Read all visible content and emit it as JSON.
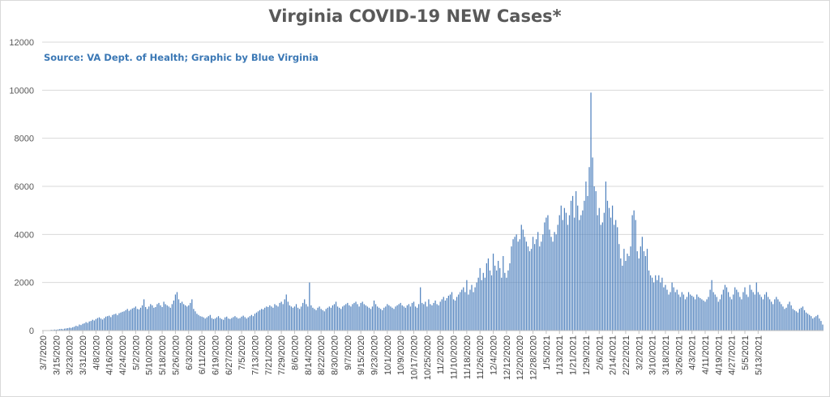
{
  "title": "Virginia COVID-19 NEW Cases*",
  "source": "Source: VA Dept. of Health; Graphic by Blue Virginia",
  "colors": {
    "bar": "#4f81bd",
    "grid": "#d9d9d9",
    "text": "#595959",
    "source": "#3b78b5"
  },
  "chart_data": {
    "type": "bar",
    "title": "Virginia COVID-19 NEW Cases*",
    "subtitle": "Source: VA Dept. of Health; Graphic by Blue Virginia",
    "xlabel": "",
    "ylabel": "",
    "x_start": "3/7/2020",
    "x_end": "5/17/2021",
    "ylim": [
      0,
      12000
    ],
    "yticks": [
      0,
      2000,
      4000,
      6000,
      8000,
      10000,
      12000
    ],
    "xtick_labels": [
      "3/7/2020",
      "3/15/2020",
      "3/23/2020",
      "3/31/2020",
      "4/8/2020",
      "4/16/2020",
      "4/24/2020",
      "5/2/2020",
      "5/10/2020",
      "5/18/2020",
      "5/26/2020",
      "6/3/2020",
      "6/11/2020",
      "6/19/2020",
      "6/27/2020",
      "7/5/2020",
      "7/13/2020",
      "7/21/2020",
      "7/29/2020",
      "8/6/2020",
      "8/14/2020",
      "8/22/2020",
      "8/30/2020",
      "9/7/2020",
      "9/15/2020",
      "9/23/2020",
      "10/1/2020",
      "10/9/2020",
      "10/17/2020",
      "10/25/2020",
      "11/2/2020",
      "11/10/2020",
      "11/18/2020",
      "11/26/2020",
      "12/4/2020",
      "12/12/2020",
      "12/20/2020",
      "12/28/2020",
      "1/5/2021",
      "1/13/2021",
      "1/21/2021",
      "1/29/2021",
      "2/6/2021",
      "2/14/2021",
      "2/22/2021",
      "3/2/2021",
      "3/10/2021",
      "3/18/2021",
      "3/26/2021",
      "4/3/2021",
      "4/11/2021",
      "4/19/2021",
      "4/27/2021",
      "5/5/2021",
      "5/13/2021"
    ],
    "legend": "none",
    "grid": true,
    "series": [
      {
        "values": [
          2,
          3,
          8,
          7,
          15,
          30,
          25,
          40,
          35,
          45,
          60,
          70,
          55,
          80,
          90,
          100,
          120,
          110,
          140,
          160,
          200,
          180,
          250,
          230,
          280,
          300,
          350,
          320,
          380,
          400,
          450,
          420,
          480,
          520,
          550,
          500,
          460,
          520,
          580,
          600,
          620,
          560,
          650,
          680,
          700,
          640,
          720,
          750,
          780,
          800,
          850,
          900,
          820,
          870,
          920,
          950,
          1000,
          900,
          880,
          950,
          1050,
          1300,
          980,
          900,
          1000,
          1100,
          1050,
          950,
          980,
          1100,
          1150,
          1050,
          980,
          1200,
          1100,
          1050,
          1000,
          950,
          1100,
          1250,
          1500,
          1600,
          1300,
          1150,
          1200,
          1100,
          1050,
          1000,
          1050,
          1150,
          1300,
          900,
          800,
          700,
          650,
          600,
          580,
          550,
          500,
          550,
          600,
          650,
          520,
          480,
          500,
          550,
          600,
          520,
          480,
          450,
          550,
          580,
          500,
          480,
          520,
          560,
          600,
          550,
          500,
          520,
          580,
          620,
          560,
          500,
          550,
          600,
          650,
          600,
          700,
          750,
          800,
          850,
          900,
          880,
          950,
          1000,
          980,
          1050,
          1000,
          950,
          1100,
          1050,
          1000,
          1150,
          1200,
          1100,
          1300,
          1500,
          1200,
          1050,
          1000,
          950,
          1000,
          1100,
          950,
          900,
          1000,
          1150,
          1300,
          1100,
          1000,
          2000,
          1050,
          950,
          900,
          850,
          950,
          1000,
          900,
          850,
          800,
          900,
          950,
          1000,
          950,
          1050,
          1100,
          1200,
          1000,
          950,
          900,
          1000,
          1050,
          1100,
          1150,
          1050,
          1000,
          1100,
          1150,
          1200,
          1100,
          1000,
          1150,
          1200,
          1100,
          1050,
          1000,
          950,
          900,
          1000,
          1250,
          1100,
          1000,
          950,
          900,
          850,
          950,
          1000,
          1100,
          1050,
          1000,
          950,
          900,
          1000,
          1050,
          1100,
          1150,
          1050,
          1000,
          950,
          1050,
          1100,
          1000,
          1150,
          1200,
          1000,
          950,
          1100,
          1800,
          1150,
          1100,
          1200,
          1000,
          1300,
          1100,
          1050,
          1150,
          1250,
          1100,
          1050,
          1200,
          1300,
          1400,
          1250,
          1350,
          1450,
          1500,
          1600,
          1300,
          1250,
          1400,
          1500,
          1600,
          1700,
          1800,
          1600,
          2100,
          1500,
          1700,
          1900,
          1600,
          1800,
          2000,
          2200,
          2600,
          2100,
          2400,
          2200,
          2800,
          3000,
          2500,
          2300,
          3200,
          2700,
          2500,
          2900,
          2600,
          2200,
          3100,
          2400,
          2200,
          2500,
          2800,
          3500,
          3800,
          3900,
          4000,
          3700,
          3800,
          4400,
          4200,
          3900,
          3700,
          3500,
          3300,
          3400,
          3900,
          3600,
          3800,
          4100,
          3500,
          3700,
          4000,
          4500,
          4700,
          4800,
          4200,
          3900,
          3700,
          4100,
          4000,
          4400,
          4800,
          5200,
          4600,
          5100,
          4900,
          4400,
          4800,
          5400,
          5600,
          4700,
          5800,
          5200,
          4600,
          4800,
          5000,
          5400,
          6200,
          5600,
          6800,
          9900,
          7200,
          6000,
          5800,
          4800,
          5100,
          4400,
          4500,
          4900,
          6200,
          5400,
          5100,
          4700,
          5200,
          4400,
          4600,
          4300,
          3600,
          3000,
          2700,
          3400,
          2900,
          3200,
          3100,
          3500,
          4800,
          5000,
          4600,
          3300,
          3000,
          3500,
          3900,
          3300,
          3100,
          3400,
          2500,
          2300,
          2200,
          2000,
          2300,
          2100,
          2300,
          2000,
          2200,
          1800,
          1900,
          1700,
          1500,
          1600,
          2000,
          1800,
          1600,
          1700,
          1500,
          1400,
          1600,
          1500,
          1300,
          1400,
          1600,
          1500,
          1450,
          1400,
          1300,
          1500,
          1400,
          1350,
          1300,
          1250,
          1200,
          1300,
          1400,
          1700,
          2100,
          1600,
          1500,
          1400,
          1200,
          1300,
          1500,
          1700,
          1900,
          1800,
          1600,
          1400,
          1300,
          1500,
          1800,
          1700,
          1600,
          1400,
          1300,
          1600,
          1800,
          1500,
          1400,
          1900,
          1700,
          1600,
          1500,
          2000,
          1600,
          1500,
          1400,
          1300,
          1500,
          1600,
          1400,
          1300,
          1200,
          1100,
          1300,
          1400,
          1300,
          1200,
          1100,
          1000,
          900,
          950,
          1100,
          1200,
          1050,
          900,
          850,
          800,
          750,
          900,
          950,
          1000,
          850,
          750,
          700,
          650,
          600,
          500,
          550,
          600,
          650,
          500,
          400,
          250
        ]
      }
    ]
  }
}
